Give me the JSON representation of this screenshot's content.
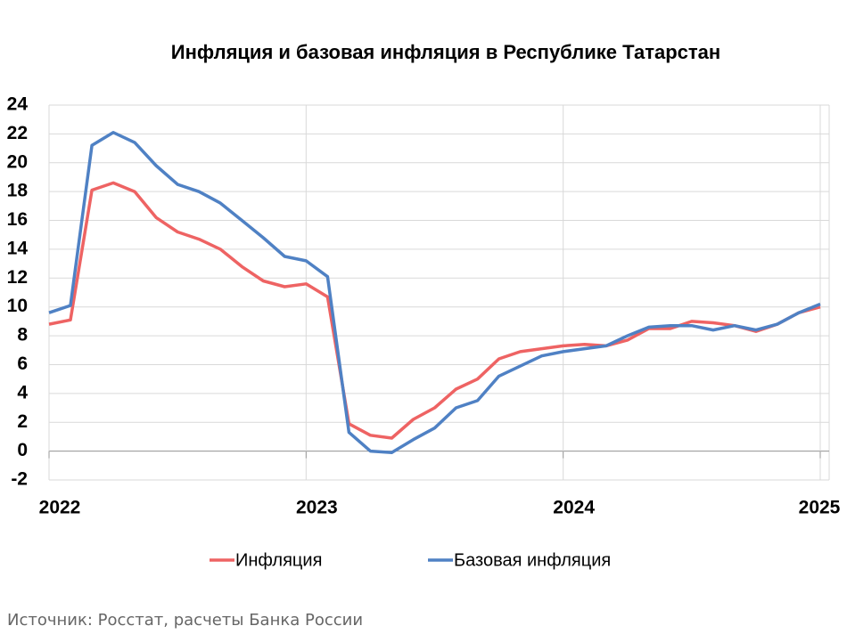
{
  "chart_data": {
    "type": "line",
    "title": "Инфляция и базовая инфляция в Республике Татарстан",
    "categories": [
      "2022",
      null,
      null,
      null,
      null,
      null,
      null,
      null,
      null,
      null,
      null,
      null,
      "2023",
      null,
      null,
      null,
      null,
      null,
      null,
      null,
      null,
      null,
      null,
      null,
      "2024",
      null,
      null,
      null,
      null,
      null,
      null,
      null,
      null,
      null,
      null,
      null,
      "2025"
    ],
    "series": [
      {
        "name": "Инфляция",
        "color": "#ee6363",
        "values": [
          8.8,
          9.1,
          18.1,
          18.6,
          18.0,
          16.2,
          15.2,
          14.7,
          14.0,
          12.8,
          11.8,
          11.4,
          11.6,
          10.7,
          1.9,
          1.1,
          0.9,
          2.2,
          3.0,
          4.3,
          5.0,
          6.4,
          6.9,
          7.1,
          7.3,
          7.4,
          7.3,
          7.7,
          8.5,
          8.5,
          9.0,
          8.9,
          8.7,
          8.3,
          8.8,
          9.6,
          10.0
        ]
      },
      {
        "name": "Базовая инфляция",
        "color": "#4f81c4",
        "values": [
          9.6,
          10.1,
          21.2,
          22.1,
          21.4,
          19.8,
          18.5,
          18.0,
          17.2,
          16.0,
          14.8,
          13.5,
          13.2,
          12.1,
          1.3,
          0.0,
          -0.1,
          0.8,
          1.6,
          3.0,
          3.5,
          5.2,
          5.9,
          6.6,
          6.9,
          7.1,
          7.3,
          8.0,
          8.6,
          8.7,
          8.7,
          8.4,
          8.7,
          8.4,
          8.8,
          9.6,
          10.2
        ]
      }
    ],
    "ylim": [
      -2,
      24
    ],
    "yticks": [
      -2,
      0,
      2,
      4,
      6,
      8,
      10,
      12,
      14,
      16,
      18,
      20,
      22,
      24
    ],
    "grid": true,
    "legend": "bottom",
    "source": "Источник: Росстат, расчеты Банка России"
  }
}
